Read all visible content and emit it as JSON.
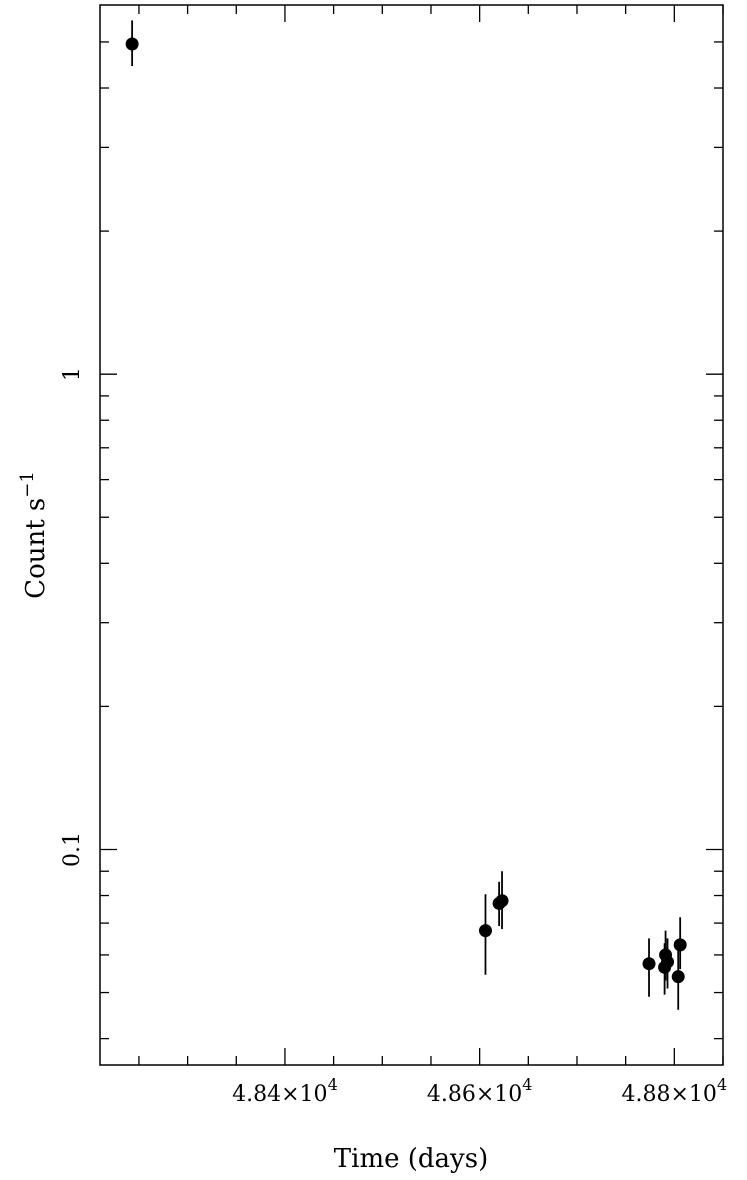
{
  "chart_data": {
    "type": "scatter",
    "xlabel": "Time (days)",
    "ylabel": "Count s",
    "ylabel_exponent": "−1",
    "x_scale": "linear",
    "y_scale": "log",
    "xlim": [
      48210,
      48850
    ],
    "ylim": [
      0.0352,
      5.98
    ],
    "x_tick_labels": [
      {
        "value": 48400,
        "mantissa": "4.84×10",
        "exp": "4"
      },
      {
        "value": 48600,
        "mantissa": "4.86×10",
        "exp": "4"
      },
      {
        "value": 48800,
        "mantissa": "4.88×10",
        "exp": "4"
      }
    ],
    "y_tick_labels": [
      {
        "value": 0.1,
        "label": "0.1"
      },
      {
        "value": 1,
        "label": "1"
      }
    ],
    "points": [
      {
        "x": 48243,
        "y": 4.95,
        "ylo": 4.45,
        "yhi": 5.55
      },
      {
        "x": 48606,
        "y": 0.0675,
        "ylo": 0.0545,
        "yhi": 0.0805
      },
      {
        "x": 48620,
        "y": 0.077,
        "ylo": 0.069,
        "yhi": 0.0855
      },
      {
        "x": 48623,
        "y": 0.078,
        "ylo": 0.068,
        "yhi": 0.09
      },
      {
        "x": 48774,
        "y": 0.0575,
        "ylo": 0.049,
        "yhi": 0.065
      },
      {
        "x": 48790,
        "y": 0.0565,
        "ylo": 0.0495,
        "yhi": 0.0635
      },
      {
        "x": 48791,
        "y": 0.06,
        "ylo": 0.053,
        "yhi": 0.0675
      },
      {
        "x": 48793,
        "y": 0.058,
        "ylo": 0.051,
        "yhi": 0.065
      },
      {
        "x": 48804,
        "y": 0.054,
        "ylo": 0.046,
        "yhi": 0.062
      },
      {
        "x": 48806,
        "y": 0.063,
        "ylo": 0.056,
        "yhi": 0.072
      }
    ],
    "grid": false,
    "legend": "none",
    "marker_color": "#000000"
  }
}
